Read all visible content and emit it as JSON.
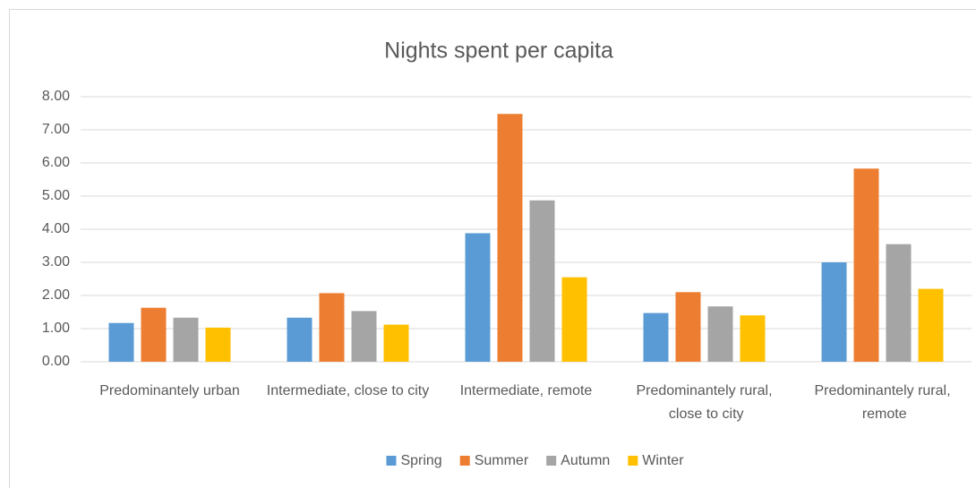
{
  "chart_data": {
    "type": "bar",
    "title": "Nights spent per capita",
    "categories": [
      "Predominantely urban",
      "Intermediate, close to city",
      "Intermediate, remote",
      "Predominantely rural, close to city",
      "Predominantely rural, remote"
    ],
    "series": [
      {
        "name": "Spring",
        "color": "#5b9bd5",
        "values": [
          1.17,
          1.33,
          3.88,
          1.47,
          3.0
        ]
      },
      {
        "name": "Summer",
        "color": "#ed7d31",
        "values": [
          1.63,
          2.07,
          7.48,
          2.1,
          5.83
        ]
      },
      {
        "name": "Autumn",
        "color": "#a5a5a5",
        "values": [
          1.33,
          1.53,
          4.87,
          1.67,
          3.55
        ]
      },
      {
        "name": "Winter",
        "color": "#ffc000",
        "values": [
          1.03,
          1.12,
          2.55,
          1.4,
          2.2
        ]
      }
    ],
    "ylim": [
      0,
      8
    ],
    "yticks": [
      {
        "value": 0,
        "label": "0.00"
      },
      {
        "value": 1,
        "label": "1.00"
      },
      {
        "value": 2,
        "label": "2.00"
      },
      {
        "value": 3,
        "label": "3.00"
      },
      {
        "value": 4,
        "label": "4.00"
      },
      {
        "value": 5,
        "label": "5.00"
      },
      {
        "value": 6,
        "label": "6.00"
      },
      {
        "value": 7,
        "label": "7.00"
      },
      {
        "value": 8,
        "label": "8.00"
      }
    ],
    "grid": true,
    "legend": "bottom"
  }
}
